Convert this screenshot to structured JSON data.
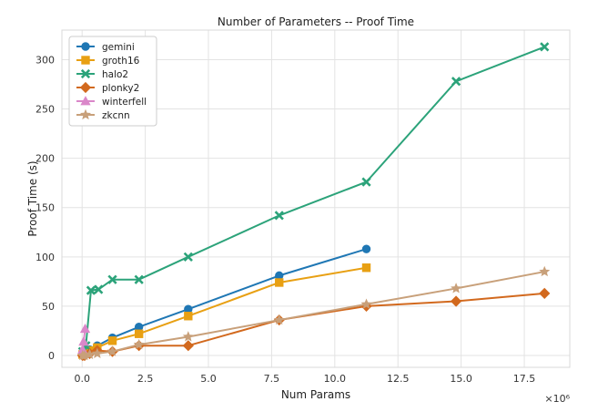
{
  "chart_data": {
    "type": "line",
    "title": "Number of Parameters -- Proof Time",
    "xlabel": "Num Params",
    "ylabel": "Proof Time (s)",
    "x_scale_label": "×10⁶",
    "x_scale": 1000000,
    "xlim": [
      -0.8,
      19.3
    ],
    "ylim": [
      -12,
      330
    ],
    "xticks": [
      0.0,
      2.5,
      5.0,
      7.5,
      10.0,
      12.5,
      15.0,
      17.5
    ],
    "xtick_labels": [
      "0.0",
      "2.5",
      "5.0",
      "7.5",
      "10.0",
      "12.5",
      "15.0",
      "17.5"
    ],
    "yticks": [
      0,
      50,
      100,
      150,
      200,
      250,
      300
    ],
    "ytick_labels": [
      "0",
      "50",
      "100",
      "150",
      "200",
      "250",
      "300"
    ],
    "grid": true,
    "legend_position": "top-left",
    "series": [
      {
        "name": "gemini",
        "color": "#1f77b4",
        "marker": "circle",
        "x": [
          0.02,
          0.1,
          0.3,
          0.6,
          1.2,
          2.25,
          4.2,
          7.8,
          11.25
        ],
        "y": [
          1,
          3,
          6,
          10,
          18,
          29,
          47,
          81,
          108
        ]
      },
      {
        "name": "groth16",
        "color": "#e8a013",
        "marker": "square",
        "x": [
          0.02,
          0.1,
          0.3,
          0.6,
          1.2,
          2.25,
          4.2,
          7.8,
          11.25
        ],
        "y": [
          1,
          2,
          5,
          8,
          15,
          22,
          40,
          74,
          89
        ]
      },
      {
        "name": "halo2",
        "color": "#2ca37a",
        "marker": "x",
        "x": [
          0.02,
          0.15,
          0.35,
          0.65,
          1.2,
          2.25,
          4.2,
          7.8,
          11.25,
          14.8,
          18.3
        ],
        "y": [
          4,
          10,
          66,
          67,
          77,
          77,
          100,
          142,
          176,
          278,
          313
        ]
      },
      {
        "name": "plonky2",
        "color": "#d2691e",
        "marker": "diamond",
        "x": [
          0.02,
          0.1,
          0.3,
          0.6,
          1.2,
          2.25,
          4.2,
          7.8,
          11.25,
          14.8,
          18.3
        ],
        "y": [
          0,
          0,
          2,
          5,
          4,
          10,
          10,
          36,
          50,
          55,
          63
        ]
      },
      {
        "name": "winterfell",
        "color": "#da87c9",
        "marker": "triangle",
        "x": [
          0.02,
          0.06,
          0.12
        ],
        "y": [
          6,
          14,
          27
        ]
      },
      {
        "name": "zkcnn",
        "color": "#c8a07a",
        "marker": "star",
        "x": [
          0.02,
          0.1,
          0.3,
          0.6,
          1.2,
          2.25,
          4.2,
          7.8,
          11.25,
          14.8,
          18.3
        ],
        "y": [
          0,
          0,
          1,
          2,
          4,
          11,
          19,
          36,
          52,
          68,
          85
        ]
      }
    ]
  }
}
